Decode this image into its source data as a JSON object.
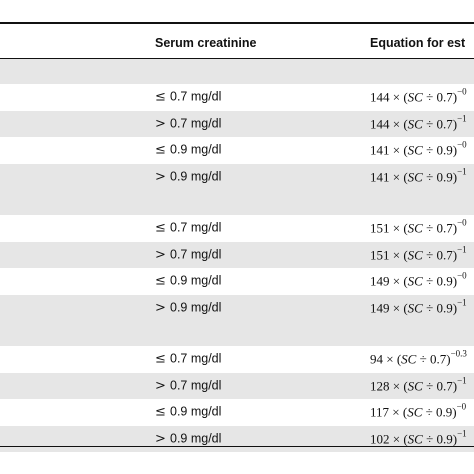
{
  "header": {
    "col_serum": "Serum creatinine",
    "col_equation": "Equation for est"
  },
  "groups": [
    {
      "rows": [
        {
          "op": "≤",
          "value": "0.7 mg/dl",
          "coef": "144",
          "ref": "0.7",
          "exp": "−0"
        },
        {
          "op": ">",
          "value": "0.7 mg/dl",
          "coef": "144",
          "ref": "0.7",
          "exp": "−1"
        },
        {
          "op": "≤",
          "value": "0.9 mg/dl",
          "coef": "141",
          "ref": "0.9",
          "exp": "−0"
        },
        {
          "op": ">",
          "value": "0.9 mg/dl",
          "coef": "141",
          "ref": "0.9",
          "exp": "−1"
        }
      ]
    },
    {
      "rows": [
        {
          "op": "≤",
          "value": "0.7 mg/dl",
          "coef": "151",
          "ref": "0.7",
          "exp": "−0"
        },
        {
          "op": ">",
          "value": "0.7 mg/dl",
          "coef": "151",
          "ref": "0.7",
          "exp": "−1"
        },
        {
          "op": "≤",
          "value": "0.9 mg/dl",
          "coef": "149",
          "ref": "0.9",
          "exp": "−0"
        },
        {
          "op": ">",
          "value": "0.9 mg/dl",
          "coef": "149",
          "ref": "0.9",
          "exp": "−1"
        }
      ]
    },
    {
      "rows": [
        {
          "op": "≤",
          "value": "0.7 mg/dl",
          "coef": "94",
          "ref": "0.7",
          "exp": "−0.3"
        },
        {
          "op": ">",
          "value": "0.7 mg/dl",
          "coef": "128",
          "ref": "0.7",
          "exp": "−1"
        },
        {
          "op": "≤",
          "value": "0.9 mg/dl",
          "coef": "117",
          "ref": "0.9",
          "exp": "−0"
        },
        {
          "op": ">",
          "value": "0.9 mg/dl",
          "coef": "102",
          "ref": "0.9",
          "exp": "−1"
        }
      ]
    }
  ]
}
